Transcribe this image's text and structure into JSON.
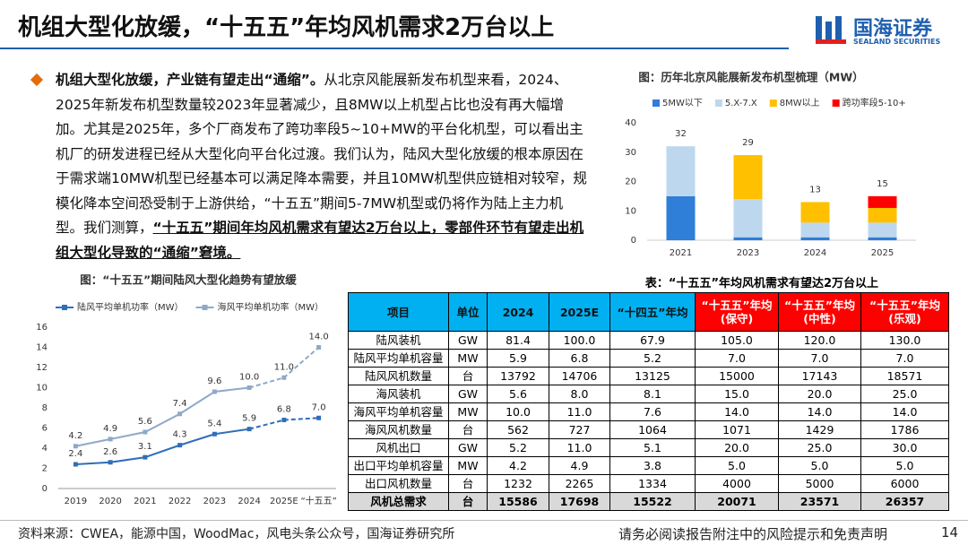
{
  "header": {
    "title": "机组大型化放缓，“十五五”年均风机需求2万台以上",
    "logo_cn": "国海证券",
    "logo_en": "SEALAND SECURITIES"
  },
  "body": {
    "lead": "机组大型化放缓，产业链有望走出“通缩”。",
    "text": "从北京风能展新发布机型来看，2024、2025年新发布机型数量较2023年显著减少，且8MW以上机型占比也没有再大幅增加。尤其是2025年，多个厂商发布了跨功率段5~10+MW的平台化机型，可以看出主机厂的研发进程已经从大型化向平台化过渡。我们认为，陆风大型化放缓的根本原因在于需求端10MW机型已经基本可以满足降本需要，并且10MW机型供应链相对较窄，规模化降本空间恐受制于上游供给，“十五五”期间5-7MW机型或仍将作为陆上主力机型。我们测算，",
    "highlight": "“十五五”期间年均风机需求有望达2万台以上，零部件环节有望走出机组大型化导致的“通缩”窘境。"
  },
  "chart_data": [
    {
      "type": "bar",
      "stacked": true,
      "title": "图：历年北京风能展新发布机型梳理（MW）",
      "categories": [
        "2021",
        "2023",
        "2024",
        "2025"
      ],
      "series": [
        {
          "name": "5MW以下",
          "color": "#2F7ED8",
          "values": [
            15,
            1,
            1,
            1
          ]
        },
        {
          "name": "5.X-7.X",
          "color": "#BDD7EE",
          "values": [
            17,
            13,
            5,
            5
          ]
        },
        {
          "name": "8MW以上",
          "color": "#FFC000",
          "values": [
            0,
            15,
            7,
            5
          ]
        },
        {
          "name": "跨功率段5-10+",
          "color": "#FF0000",
          "values": [
            0,
            0,
            0,
            4
          ]
        }
      ],
      "totals": [
        32,
        29,
        13,
        15
      ],
      "ylim": [
        0,
        40
      ],
      "yticks": [
        0,
        10,
        20,
        30,
        40
      ],
      "legend": "top"
    },
    {
      "type": "line",
      "title": "图：“十五五”期间陆风大型化趋势有望放缓",
      "categories": [
        "2019",
        "2020",
        "2021",
        "2022",
        "2023",
        "2024",
        "2025E",
        "“十五五”"
      ],
      "series": [
        {
          "name": "陆风平均单机功率（MW）",
          "color": "#2F6EBA",
          "values": [
            2.4,
            2.6,
            3.1,
            4.3,
            5.4,
            5.9,
            6.8,
            7.0
          ],
          "value_labels": [
            "2.4",
            "2.6",
            "3.1",
            "4.3",
            "5.4",
            "5.9",
            "6.8",
            "7.0"
          ]
        },
        {
          "name": "海风平均单机功率（MW）",
          "color": "#8EA9C8",
          "values": [
            4.2,
            4.9,
            5.6,
            7.4,
            9.6,
            10.0,
            11.0,
            14.0
          ],
          "value_labels": [
            "4.2",
            "4.9",
            "5.6",
            "7.4",
            "9.6",
            "10.0",
            "11.0",
            "14.0"
          ]
        }
      ],
      "dash_from": "2024",
      "ylim": [
        0,
        16
      ],
      "yticks": [
        0,
        2,
        4,
        6,
        8,
        10,
        12,
        14,
        16
      ],
      "legend": "top"
    }
  ],
  "table": {
    "title": "表：“十五五”年均风机需求有望达2万台以上",
    "headers": [
      "项目",
      "单位",
      "2024",
      "2025E",
      "“十四五”年均",
      [
        "“十五五”年均",
        "(保守)"
      ],
      [
        "“十五五”年均",
        "(中性)"
      ],
      [
        "“十五五”年均",
        "(乐观)"
      ]
    ],
    "rows": [
      [
        "陆风装机",
        "GW",
        "81.4",
        "100.0",
        "67.9",
        "105.0",
        "120.0",
        "130.0"
      ],
      [
        "陆风平均单机容量",
        "MW",
        "5.9",
        "6.8",
        "5.2",
        "7.0",
        "7.0",
        "7.0"
      ],
      [
        "陆风风机数量",
        "台",
        "13792",
        "14706",
        "13125",
        "15000",
        "17143",
        "18571"
      ],
      [
        "海风装机",
        "GW",
        "5.6",
        "8.0",
        "8.1",
        "15.0",
        "20.0",
        "25.0"
      ],
      [
        "海风平均单机容量",
        "MW",
        "10.0",
        "11.0",
        "7.6",
        "14.0",
        "14.0",
        "14.0"
      ],
      [
        "海风风机数量",
        "台",
        "562",
        "727",
        "1064",
        "1071",
        "1429",
        "1786"
      ],
      [
        "风机出口",
        "GW",
        "5.2",
        "11.0",
        "5.1",
        "20.0",
        "25.0",
        "30.0"
      ],
      [
        "出口平均单机容量",
        "MW",
        "4.2",
        "4.9",
        "3.8",
        "5.0",
        "5.0",
        "5.0"
      ],
      [
        "出口风机数量",
        "台",
        "1232",
        "2265",
        "1334",
        "4000",
        "5000",
        "6000"
      ],
      [
        "风机总需求",
        "台",
        "15586",
        "17698",
        "15522",
        "20071",
        "23571",
        "26357"
      ]
    ]
  },
  "footer": {
    "source": "资料来源：CWEA，能源中国，WoodMac，风电头条公众号，国海证券研究所",
    "disclaimer": "请务必阅读报告附注中的风险提示和免责声明",
    "page": "14"
  }
}
